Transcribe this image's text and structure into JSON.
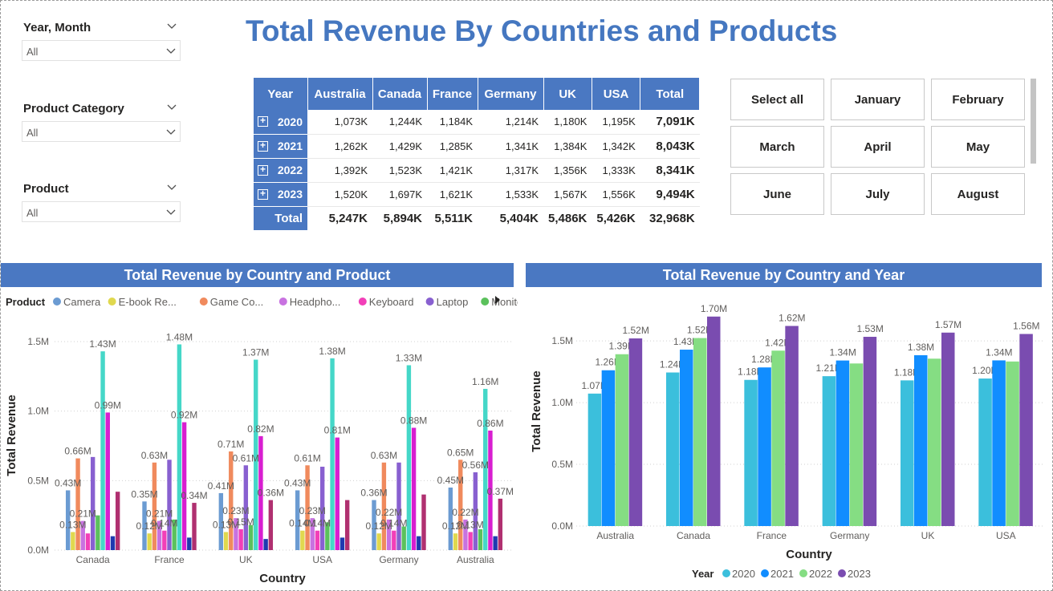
{
  "page_title": "Total Revenue By Countries and Products",
  "slicers": {
    "year_month": {
      "title": "Year, Month",
      "value": "All"
    },
    "product_category": {
      "title": "Product Category",
      "value": "All"
    },
    "product": {
      "title": "Product",
      "value": "All"
    }
  },
  "matrix": {
    "headers": [
      "Year",
      "Australia",
      "Canada",
      "France",
      "Germany",
      "UK",
      "USA",
      "Total"
    ],
    "rows": [
      {
        "year": "2020",
        "values": [
          "1,073K",
          "1,244K",
          "1,184K",
          "1,214K",
          "1,180K",
          "1,195K"
        ],
        "total": "7,091K"
      },
      {
        "year": "2021",
        "values": [
          "1,262K",
          "1,429K",
          "1,285K",
          "1,341K",
          "1,384K",
          "1,342K"
        ],
        "total": "8,043K"
      },
      {
        "year": "2022",
        "values": [
          "1,392K",
          "1,523K",
          "1,421K",
          "1,317K",
          "1,356K",
          "1,333K"
        ],
        "total": "8,341K"
      },
      {
        "year": "2023",
        "values": [
          "1,520K",
          "1,697K",
          "1,621K",
          "1,533K",
          "1,567K",
          "1,556K"
        ],
        "total": "9,494K"
      }
    ],
    "total_row": {
      "label": "Total",
      "values": [
        "5,247K",
        "5,894K",
        "5,511K",
        "5,404K",
        "5,486K",
        "5,426K"
      ],
      "total": "32,968K"
    }
  },
  "month_buttons": [
    "Select all",
    "January",
    "February",
    "March",
    "April",
    "May",
    "June",
    "July",
    "August"
  ],
  "chart_data": [
    {
      "type": "bar",
      "title": "Total Revenue by Country and Product",
      "xlabel": "Country",
      "ylabel": "Total Revenue",
      "legend_title": "Product",
      "legend_position": "top-left",
      "legend_labels": [
        "Camera",
        "E-book Re...",
        "Game Co...",
        "Headpho...",
        "Keyboard",
        "Laptop",
        "Monitor"
      ],
      "yticks": [
        "0.0M",
        "0.5M",
        "1.0M",
        "1.5M"
      ],
      "ylim": [
        0,
        1.65
      ],
      "grid": true,
      "categories": [
        "Canada",
        "France",
        "UK",
        "USA",
        "Germany",
        "Australia"
      ],
      "colors": [
        "#6b9bd2",
        "#e0d84e",
        "#f08a5d",
        "#c872e0",
        "#f23fb8",
        "#8860d0",
        "#5bc15c",
        "#45d7c8",
        "#d81ed0",
        "#1f3ab0",
        "#b03070"
      ],
      "series": [
        {
          "name": "Camera",
          "values": [
            0.43,
            0.35,
            0.41,
            0.43,
            0.36,
            0.45
          ]
        },
        {
          "name": "E-book Re...",
          "values": [
            0.13,
            0.12,
            0.13,
            0.14,
            0.12,
            0.12
          ]
        },
        {
          "name": "Game Co...",
          "values": [
            0.66,
            0.63,
            0.71,
            0.61,
            0.63,
            0.65
          ]
        },
        {
          "name": "Headpho...",
          "values": [
            0.21,
            0.21,
            0.23,
            0.23,
            0.22,
            0.22
          ]
        },
        {
          "name": "Keyboard",
          "values": [
            0.12,
            0.14,
            0.15,
            0.14,
            0.14,
            0.13
          ]
        },
        {
          "values": [
            0.67,
            0.65,
            0.61,
            0.6,
            0.63,
            0.56
          ]
        },
        {
          "values": [
            0.25,
            0.22,
            0.18,
            0.2,
            0.17,
            0.15
          ]
        },
        {
          "values": [
            1.43,
            1.48,
            1.37,
            1.38,
            1.33,
            1.16
          ]
        },
        {
          "values": [
            0.99,
            0.92,
            0.82,
            0.81,
            0.88,
            0.86
          ]
        },
        {
          "values": [
            0.1,
            0.09,
            0.08,
            0.09,
            0.1,
            0.1
          ]
        },
        {
          "values": [
            0.42,
            0.34,
            0.36,
            0.36,
            0.4,
            0.37
          ]
        }
      ],
      "data_labels": [
        {
          "category": 0,
          "series": 0,
          "text": "0.43M"
        },
        {
          "category": 0,
          "series": 1,
          "text": "0.13M"
        },
        {
          "category": 0,
          "series": 2,
          "text": "0.66M"
        },
        {
          "category": 0,
          "series": 3,
          "text": "0.21M"
        },
        {
          "category": 0,
          "series": 7,
          "text": "1.43M"
        },
        {
          "category": 0,
          "series": 8,
          "text": "0.99M"
        },
        {
          "category": 1,
          "series": 0,
          "text": "0.35M"
        },
        {
          "category": 1,
          "series": 1,
          "text": "0.12M"
        },
        {
          "category": 1,
          "series": 2,
          "text": "0.63M"
        },
        {
          "category": 1,
          "series": 3,
          "text": "0.21M"
        },
        {
          "category": 1,
          "series": 4,
          "text": "0.14M"
        },
        {
          "category": 1,
          "series": 7,
          "text": "1.48M"
        },
        {
          "category": 1,
          "series": 8,
          "text": "0.92M"
        },
        {
          "category": 1,
          "series": 10,
          "text": "0.34M"
        },
        {
          "category": 2,
          "series": 0,
          "text": "0.41M"
        },
        {
          "category": 2,
          "series": 1,
          "text": "0.13M"
        },
        {
          "category": 2,
          "series": 2,
          "text": "0.71M"
        },
        {
          "category": 2,
          "series": 3,
          "text": "0.23M"
        },
        {
          "category": 2,
          "series": 4,
          "text": "0.15M"
        },
        {
          "category": 2,
          "series": 5,
          "text": "0.61M"
        },
        {
          "category": 2,
          "series": 7,
          "text": "1.37M"
        },
        {
          "category": 2,
          "series": 8,
          "text": "0.82M"
        },
        {
          "category": 2,
          "series": 10,
          "text": "0.36M"
        },
        {
          "category": 3,
          "series": 0,
          "text": "0.43M"
        },
        {
          "category": 3,
          "series": 1,
          "text": "0.14M"
        },
        {
          "category": 3,
          "series": 2,
          "text": "0.61M"
        },
        {
          "category": 3,
          "series": 3,
          "text": "0.23M"
        },
        {
          "category": 3,
          "series": 4,
          "text": "0.14M"
        },
        {
          "category": 3,
          "series": 7,
          "text": "1.38M"
        },
        {
          "category": 3,
          "series": 8,
          "text": "0.81M"
        },
        {
          "category": 4,
          "series": 0,
          "text": "0.36M"
        },
        {
          "category": 4,
          "series": 1,
          "text": "0.12M"
        },
        {
          "category": 4,
          "series": 2,
          "text": "0.63M"
        },
        {
          "category": 4,
          "series": 3,
          "text": "0.22M"
        },
        {
          "category": 4,
          "series": 4,
          "text": "0.14M"
        },
        {
          "category": 4,
          "series": 7,
          "text": "1.33M"
        },
        {
          "category": 4,
          "series": 8,
          "text": "0.88M"
        },
        {
          "category": 5,
          "series": 0,
          "text": "0.45M"
        },
        {
          "category": 5,
          "series": 1,
          "text": "0.12M"
        },
        {
          "category": 5,
          "series": 2,
          "text": "0.65M"
        },
        {
          "category": 5,
          "series": 3,
          "text": "0.22M"
        },
        {
          "category": 5,
          "series": 4,
          "text": "0.13M"
        },
        {
          "category": 5,
          "series": 5,
          "text": "0.56M"
        },
        {
          "category": 5,
          "series": 7,
          "text": "1.16M"
        },
        {
          "category": 5,
          "series": 8,
          "text": "0.86M"
        },
        {
          "category": 5,
          "series": 10,
          "text": "0.37M"
        }
      ]
    },
    {
      "type": "bar",
      "title": "Total Revenue by Country and Year",
      "xlabel": "Country",
      "ylabel": "Total Revenue",
      "legend_title": "Year",
      "legend_position": "bottom-center",
      "yticks": [
        "0.0M",
        "0.5M",
        "1.0M",
        "1.5M"
      ],
      "ylim": [
        0,
        1.78
      ],
      "grid": true,
      "categories": [
        "Australia",
        "Canada",
        "France",
        "Germany",
        "UK",
        "USA"
      ],
      "colors": [
        "#3bbfdc",
        "#118dff",
        "#85dd83",
        "#7a4cb0"
      ],
      "series": [
        {
          "name": "2020",
          "values": [
            1.073,
            1.244,
            1.184,
            1.214,
            1.18,
            1.195
          ],
          "labels": [
            "1.07M",
            "1.24M",
            "1.18M",
            "1.21M",
            "1.18M",
            "1.20M"
          ]
        },
        {
          "name": "2021",
          "values": [
            1.262,
            1.429,
            1.285,
            1.341,
            1.384,
            1.342
          ],
          "labels": [
            "1.26M",
            "1.43M",
            "1.28M",
            "1.34M",
            "1.38M",
            "1.34M"
          ]
        },
        {
          "name": "2022",
          "values": [
            1.392,
            1.523,
            1.421,
            1.317,
            1.356,
            1.333
          ],
          "labels": [
            "1.39M",
            "1.52M",
            "1.42M",
            "",
            "",
            ""
          ]
        },
        {
          "name": "2023",
          "values": [
            1.52,
            1.697,
            1.621,
            1.533,
            1.567,
            1.556
          ],
          "labels": [
            "1.52M",
            "1.70M",
            "1.62M",
            "1.53M",
            "1.57M",
            "1.56M"
          ]
        }
      ]
    }
  ]
}
